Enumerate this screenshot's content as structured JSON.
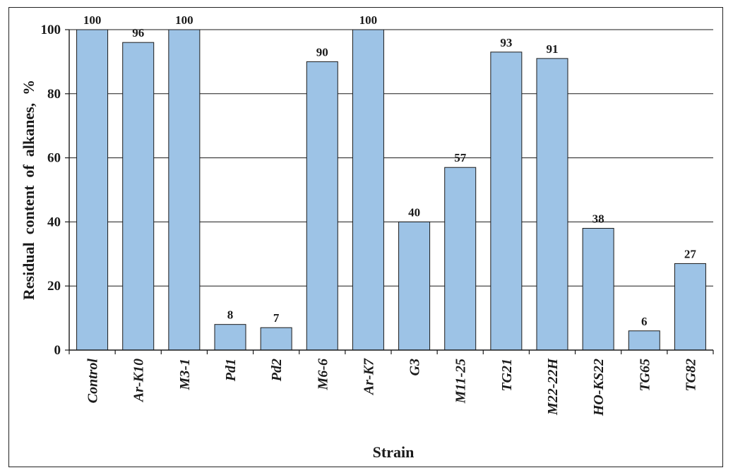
{
  "chart_data": {
    "type": "bar",
    "title": "",
    "xlabel": "Strain",
    "ylabel": "Residual  content  of  alkanes,  %",
    "ylim": [
      0,
      100
    ],
    "yticks": [
      0,
      20,
      40,
      60,
      80,
      100
    ],
    "grid": true,
    "legend": "none",
    "bar_color": "#9dc3e6",
    "bar_edge_color": "#1a1a1a",
    "categories": [
      "Control",
      "Ar-K10",
      "M3-1",
      "Pd1",
      "Pd2",
      "M6-6",
      "Ar-K7",
      "G3",
      "M11-25",
      "TG21",
      "M22-22H",
      "HO-KS22",
      "TG65",
      "TG82"
    ],
    "values": [
      100,
      96,
      100,
      8,
      7,
      90,
      100,
      40,
      57,
      93,
      91,
      38,
      6,
      27
    ],
    "data_labels": [
      "100",
      "96",
      "100",
      "8",
      "7",
      "90",
      "100",
      "40",
      "57",
      "93",
      "91",
      "38",
      "6",
      "27"
    ]
  }
}
